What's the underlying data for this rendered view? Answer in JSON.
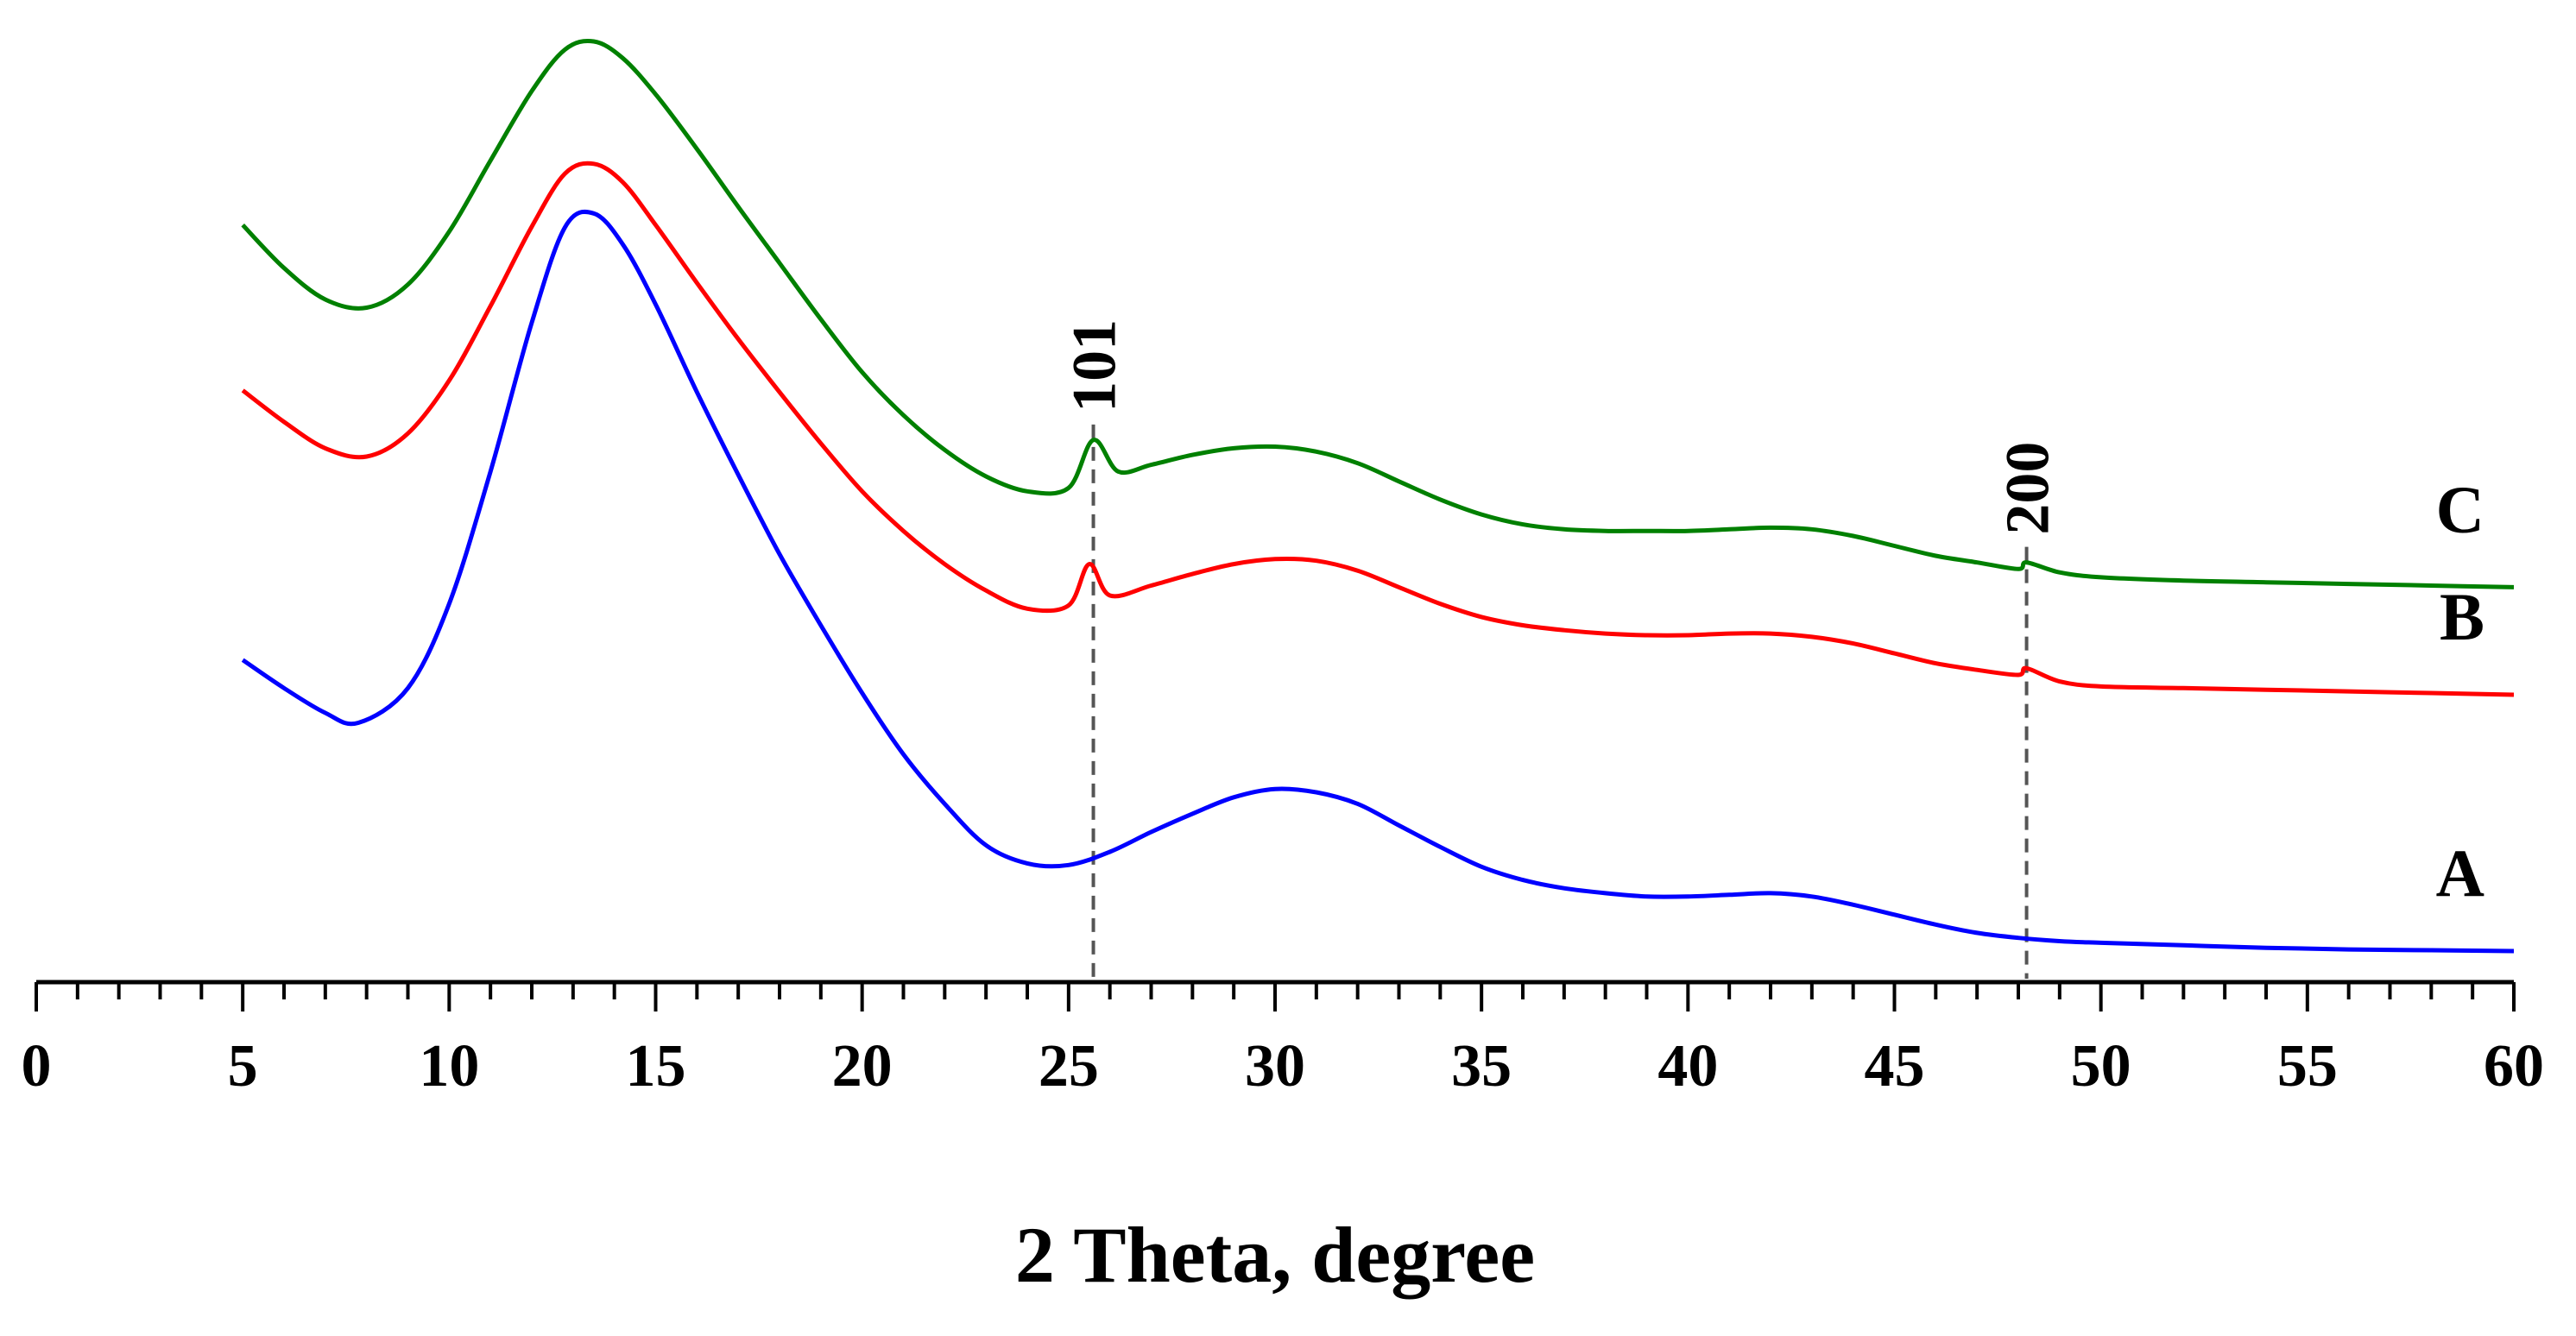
{
  "chart_data": {
    "type": "line",
    "title": "",
    "xlabel": "2 Theta, degree",
    "ylabel": "",
    "xlim": [
      0,
      60
    ],
    "ylim": [
      0,
      1.1
    ],
    "x_major_ticks": [
      0,
      5,
      10,
      15,
      20,
      25,
      30,
      35,
      40,
      45,
      50,
      55,
      60
    ],
    "x_minor_step": 1,
    "grid": false,
    "legend": "none",
    "series": [
      {
        "name": "A",
        "color": "#0000ff",
        "x": [
          5,
          6,
          7,
          7.8,
          9,
          10,
          11,
          12,
          12.8,
          13.5,
          14.2,
          15,
          16,
          17,
          18,
          19,
          20,
          21,
          22,
          23,
          24,
          25,
          26,
          27,
          28,
          29,
          30,
          31,
          32,
          33,
          34,
          35,
          36,
          37,
          38,
          39,
          40,
          41,
          42,
          43,
          44,
          45,
          46,
          47,
          48,
          49,
          50,
          52,
          54,
          56,
          58,
          60
        ],
        "y": [
          0.352,
          0.318,
          0.288,
          0.276,
          0.318,
          0.42,
          0.58,
          0.76,
          0.875,
          0.892,
          0.855,
          0.782,
          0.676,
          0.576,
          0.48,
          0.394,
          0.312,
          0.238,
          0.178,
          0.128,
          0.106,
          0.104,
          0.12,
          0.144,
          0.166,
          0.186,
          0.196,
          0.192,
          0.178,
          0.152,
          0.126,
          0.102,
          0.086,
          0.076,
          0.07,
          0.066,
          0.066,
          0.068,
          0.07,
          0.066,
          0.056,
          0.044,
          0.032,
          0.022,
          0.016,
          0.012,
          0.01,
          0.007,
          0.004,
          0.002,
          0.001,
          0.0
        ]
      },
      {
        "name": "B",
        "color": "#ff0000",
        "x": [
          5,
          6,
          7,
          8,
          9,
          10,
          11,
          12,
          12.8,
          13.5,
          14.2,
          15,
          16,
          17,
          18,
          19,
          20,
          21,
          22,
          23,
          24,
          25,
          25.5,
          26,
          27,
          28,
          29,
          30,
          31,
          32,
          33,
          34,
          35,
          36,
          37,
          38,
          39,
          40,
          41,
          42,
          43,
          44,
          45,
          46,
          47,
          48,
          48.2,
          49,
          50,
          52,
          54,
          56,
          58,
          60
        ],
        "y": [
          0.678,
          0.64,
          0.608,
          0.598,
          0.626,
          0.69,
          0.78,
          0.876,
          0.94,
          0.952,
          0.93,
          0.878,
          0.808,
          0.74,
          0.676,
          0.614,
          0.556,
          0.508,
          0.468,
          0.436,
          0.414,
          0.418,
          0.468,
          0.43,
          0.442,
          0.456,
          0.468,
          0.474,
          0.472,
          0.46,
          0.44,
          0.42,
          0.404,
          0.394,
          0.388,
          0.384,
          0.382,
          0.382,
          0.384,
          0.384,
          0.38,
          0.372,
          0.36,
          0.348,
          0.34,
          0.334,
          0.342,
          0.326,
          0.32,
          0.318,
          0.316,
          0.314,
          0.312,
          0.31
        ]
      },
      {
        "name": "C",
        "color": "#008000",
        "x": [
          5,
          6,
          7,
          8,
          9,
          10,
          11,
          12,
          12.8,
          13.5,
          14.2,
          15,
          16,
          17,
          18,
          19,
          20,
          21,
          22,
          23,
          24,
          25,
          25.6,
          26.2,
          27,
          28,
          29,
          30,
          31,
          32,
          33,
          34,
          35,
          36,
          37,
          38,
          39,
          40,
          41,
          42,
          43,
          44,
          45,
          46,
          47,
          48,
          48.2,
          49,
          50,
          52,
          54,
          56,
          58,
          60
        ],
        "y": [
          0.878,
          0.826,
          0.788,
          0.778,
          0.806,
          0.87,
          0.956,
          1.04,
          1.09,
          1.1,
          1.08,
          1.036,
          0.97,
          0.9,
          0.832,
          0.764,
          0.7,
          0.648,
          0.606,
          0.574,
          0.556,
          0.56,
          0.618,
          0.58,
          0.588,
          0.6,
          0.608,
          0.61,
          0.604,
          0.59,
          0.568,
          0.546,
          0.528,
          0.516,
          0.51,
          0.508,
          0.508,
          0.508,
          0.51,
          0.512,
          0.51,
          0.502,
          0.49,
          0.478,
          0.47,
          0.462,
          0.47,
          0.458,
          0.452,
          0.448,
          0.446,
          0.444,
          0.442,
          0.44
        ]
      }
    ],
    "reference_lines": [
      {
        "label": "101",
        "x": 25.6
      },
      {
        "label": "200",
        "x": 48.2
      }
    ],
    "series_labels": [
      {
        "text": "A",
        "series": "A"
      },
      {
        "text": "B",
        "series": "B"
      },
      {
        "text": "C",
        "series": "C"
      }
    ]
  }
}
